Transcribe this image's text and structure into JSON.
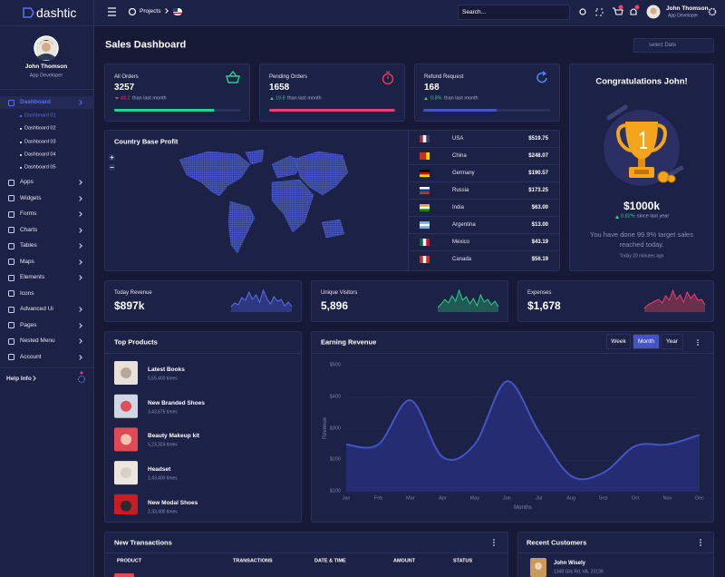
{
  "sidebar": {
    "logo": "dashtic",
    "user": {
      "name": "John Thomson",
      "role": "App Developer"
    },
    "menu": [
      {
        "label": "Dashboard",
        "sub": [
          "Dashboard 01",
          "Dashboard 02",
          "Dashboard 03",
          "Dashboard 04",
          "Dashboard 05"
        ]
      },
      {
        "label": "Apps"
      },
      {
        "label": "Widgets"
      },
      {
        "label": "Forms"
      },
      {
        "label": "Charts"
      },
      {
        "label": "Tables"
      },
      {
        "label": "Maps"
      },
      {
        "label": "Elements"
      },
      {
        "label": "Icons"
      },
      {
        "label": "Advanced Ui"
      },
      {
        "label": "Pages"
      },
      {
        "label": "Nested Menu"
      },
      {
        "label": "Account"
      }
    ],
    "help": "Help Info"
  },
  "topbar": {
    "projects": "Projects",
    "search": "Search...",
    "user": {
      "name": "John Thomson",
      "role": "App Developer"
    }
  },
  "page": {
    "title": "Sales Dashboard",
    "date": "select Date"
  },
  "stats": [
    {
      "title": "All Orders",
      "value": "3257",
      "change": "43.2",
      "note": "than last month"
    },
    {
      "title": "Pending Orders",
      "value": "1658",
      "change": "19.8",
      "note": "than last month"
    },
    {
      "title": "Refund Request",
      "value": "168",
      "change": "0.8%",
      "note": "than last month"
    }
  ],
  "congrats": {
    "title": "Congratulations John!",
    "amount": "$1000k",
    "change": "0.82%",
    "since": "since last year",
    "text": "You have done 99.9% target sales reached today.",
    "time": "Today 20 minutes ago"
  },
  "country_profit": {
    "title": "Country Base Profit",
    "rows": [
      [
        "USA",
        "$519.75"
      ],
      [
        "China",
        "$248.07"
      ],
      [
        "Germany",
        "$190.57"
      ],
      [
        "Russia",
        "$173.25"
      ],
      [
        "India",
        "$63.00"
      ],
      [
        "Argentina",
        "$13.00"
      ],
      [
        "Mexico",
        "$43.19"
      ],
      [
        "Canada",
        "$56.19"
      ]
    ]
  },
  "mini": [
    {
      "title": "Today Revenue",
      "value": "$897k"
    },
    {
      "title": "Unique Visitors",
      "value": "5,896"
    },
    {
      "title": "Expenses",
      "value": "$1,678"
    }
  ],
  "top_products": {
    "title": "Top Products",
    "items": [
      {
        "name": "Latest Books",
        "count": "5,55,400 times"
      },
      {
        "name": "New Branded Shoes",
        "count": "3,43,675 times"
      },
      {
        "name": "Beauty Makeup kit",
        "count": "5,23,324 times"
      },
      {
        "name": "Headset",
        "count": "1,43,400 times"
      },
      {
        "name": "New Modal Shoes",
        "count": "2,33,400 times"
      }
    ]
  },
  "chart_data": {
    "type": "line",
    "title": "Earning Revenue",
    "buttons": [
      "Week",
      "Month",
      "Year"
    ],
    "x_label": "Months",
    "y_label": "Revenue",
    "categories": [
      "Jan",
      "Feb",
      "Mar",
      "Apr",
      "May",
      "Jun",
      "Jul",
      "Aug",
      "Sep",
      "Oct",
      "Nov",
      "Dec"
    ],
    "values": [
      250,
      250,
      390,
      210,
      250,
      450,
      290,
      150,
      160,
      245,
      250,
      280
    ],
    "color": "#4454c3",
    "ylim": [
      100,
      500
    ],
    "yticks": [
      {
        "value": 100,
        "label": "$100"
      },
      {
        "value": 200,
        "label": "$200"
      },
      {
        "value": 300,
        "label": "$300"
      },
      {
        "value": 400,
        "label": "$400"
      },
      {
        "value": 500,
        "label": "$500"
      }
    ],
    "grid": true
  },
  "transactions": {
    "title": "New Transactions",
    "columns": [
      "PRODUCT",
      "TRANSACTIONS",
      "DATE & TIME",
      "AMOUNT",
      "STATUS"
    ]
  },
  "customers": {
    "title": "Recent Customers",
    "items": [
      {
        "name": "John Wisely",
        "address": "1348 Gils Rd, VA, 23139"
      }
    ]
  }
}
